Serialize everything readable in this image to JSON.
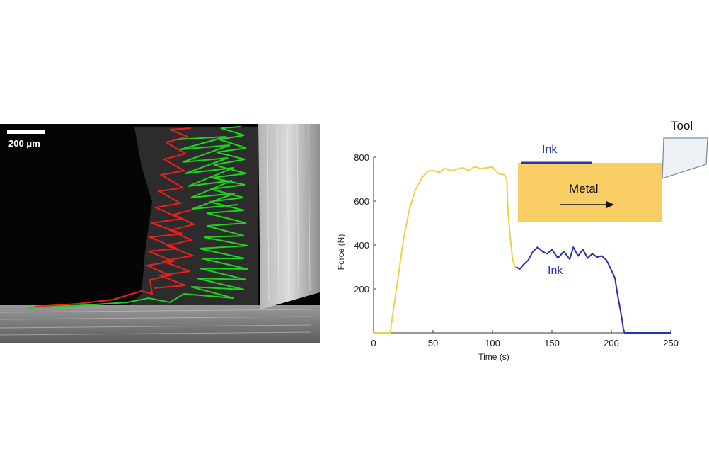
{
  "micrograph": {
    "scale_bar_label": "200 μm",
    "trace_colors": {
      "red": "#e8211d",
      "green": "#1fd21f"
    }
  },
  "chart_data": {
    "type": "line",
    "xlabel": "Time (s)",
    "ylabel": "Force (N)",
    "xlim": [
      0,
      250
    ],
    "ylim": [
      0,
      800
    ],
    "xticks": [
      0,
      50,
      100,
      150,
      200,
      250
    ],
    "yticks": [
      200,
      400,
      600,
      800
    ],
    "series": [
      {
        "color": "#f2cf4a",
        "x": [
          0,
          14,
          16,
          20,
          25,
          30,
          35,
          40,
          45,
          50,
          55,
          60,
          65,
          70,
          75,
          80,
          85,
          90,
          95,
          100,
          105,
          110,
          112,
          113,
          115,
          117,
          119,
          120
        ],
        "y": [
          0,
          0,
          80,
          230,
          420,
          560,
          650,
          700,
          735,
          740,
          730,
          750,
          738,
          745,
          752,
          740,
          757,
          748,
          752,
          755,
          725,
          720,
          700,
          560,
          430,
          330,
          300,
          300
        ]
      },
      {
        "color": "#2b33a8",
        "x": [
          120,
          123,
          126,
          130,
          134,
          138,
          142,
          146,
          150,
          155,
          160,
          165,
          168,
          172,
          176,
          180,
          184,
          188,
          192,
          196,
          200,
          203,
          205,
          207,
          209,
          210,
          211,
          212,
          230,
          250
        ],
        "y": [
          300,
          290,
          310,
          330,
          370,
          390,
          370,
          360,
          380,
          340,
          370,
          335,
          390,
          350,
          380,
          340,
          360,
          345,
          350,
          330,
          285,
          250,
          180,
          120,
          60,
          20,
          0,
          0,
          0,
          0
        ]
      }
    ],
    "annotations": {
      "ink_top": "Ink",
      "ink_curve": "Ink",
      "metal": "Metal",
      "tool": "Tool"
    }
  }
}
